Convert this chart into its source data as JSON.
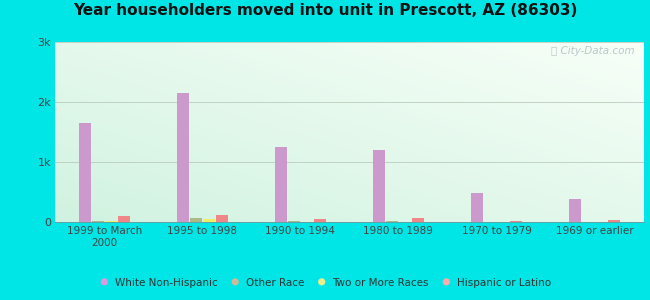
{
  "title": "Year householders moved into unit in Prescott, AZ (86303)",
  "categories": [
    "1999 to March\n2000",
    "1995 to 1998",
    "1990 to 1994",
    "1980 to 1989",
    "1970 to 1979",
    "1969 or earlier"
  ],
  "series": {
    "White Non-Hispanic": [
      1650,
      2150,
      1250,
      1200,
      480,
      380
    ],
    "Other Race": [
      22,
      65,
      12,
      12,
      8,
      8
    ],
    "Two or More Races": [
      15,
      55,
      8,
      8,
      6,
      6
    ],
    "Hispanic or Latino": [
      105,
      115,
      48,
      60,
      13,
      35
    ]
  },
  "colors": {
    "White Non-Hispanic": "#cc99cc",
    "Other Race": "#aabb88",
    "Two or More Races": "#eeee66",
    "Hispanic or Latino": "#ee8888"
  },
  "legend_colors": {
    "White Non-Hispanic": "#dd99dd",
    "Other Race": "#ccbb99",
    "Two or More Races": "#eeee88",
    "Hispanic or Latino": "#ffaaaa"
  },
  "ylim": [
    0,
    3000
  ],
  "yticks": [
    0,
    1000,
    2000,
    3000
  ],
  "ytick_labels": [
    "0",
    "1k",
    "2k",
    "3k"
  ],
  "bar_width": 0.12,
  "background_color": "#00e5e5",
  "watermark": "City-Data.com"
}
